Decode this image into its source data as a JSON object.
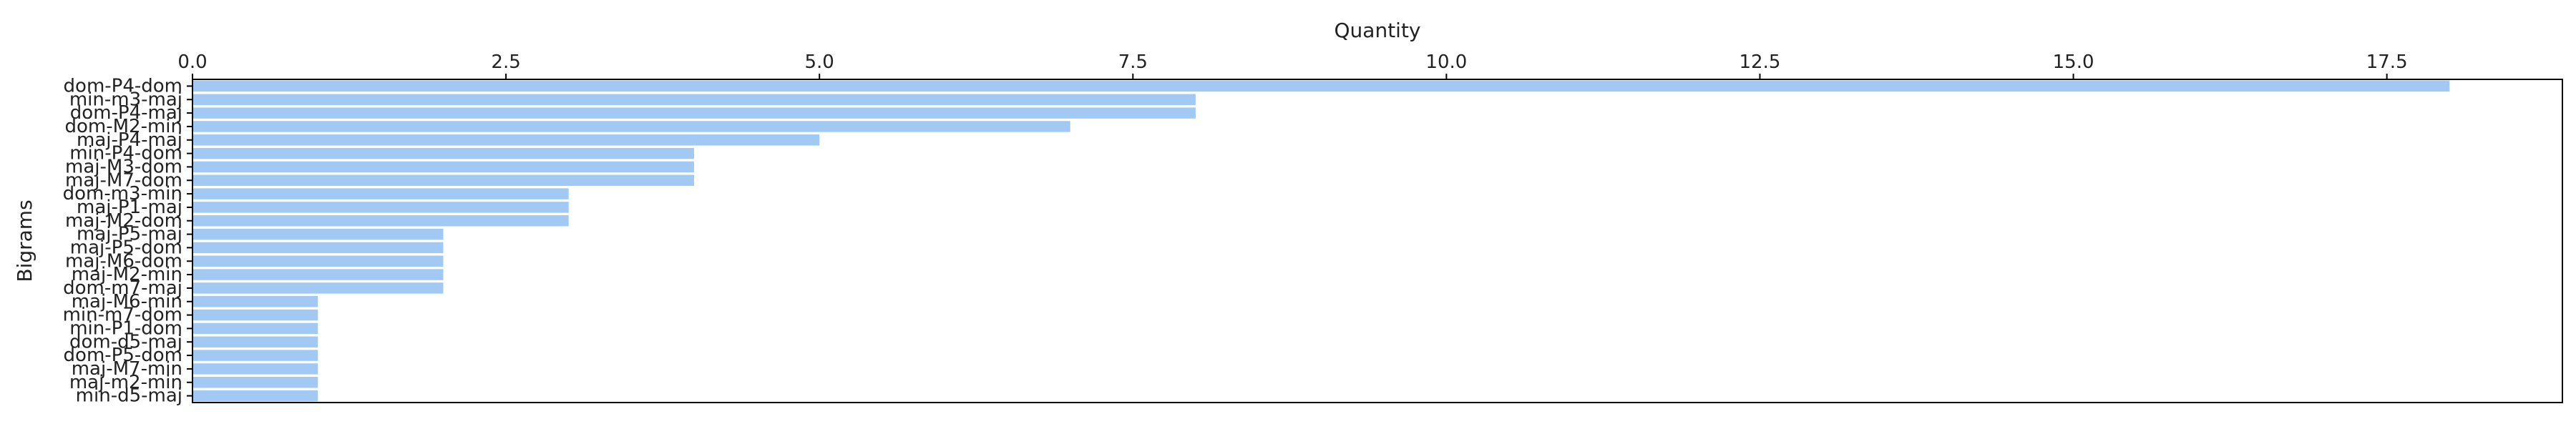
{
  "chart_data": {
    "type": "bar",
    "orientation": "horizontal",
    "xlabel": "Quantity",
    "ylabel": "Bigrams",
    "xlim": [
      0,
      18.9
    ],
    "x_ticks": [
      "0.0",
      "2.5",
      "5.0",
      "7.5",
      "10.0",
      "12.5",
      "15.0",
      "17.5"
    ],
    "x_axis_position": "top",
    "grid": false,
    "bar_color": "#a1c9f4",
    "categories": [
      "dom-P4-dom",
      "min-m3-maj",
      "dom-P4-maj",
      "dom-M2-min",
      "maj-P4-maj",
      "min-P4-dom",
      "maj-M3-dom",
      "maj-M7-dom",
      "dom-m3-min",
      "maj-P1-maj",
      "maj-M2-dom",
      "maj-P5-maj",
      "maj-P5-dom",
      "maj-M6-dom",
      "maj-M2-min",
      "dom-m7-maj",
      "maj-M6-min",
      "min-m7-dom",
      "min-P1-dom",
      "dom-d5-maj",
      "dom-P5-dom",
      "maj-M7-min",
      "maj-m2-min",
      "min-d5-maj"
    ],
    "values": [
      18,
      8,
      8,
      7,
      5,
      4,
      4,
      4,
      3,
      3,
      3,
      2,
      2,
      2,
      2,
      2,
      1,
      1,
      1,
      1,
      1,
      1,
      1,
      1
    ]
  }
}
